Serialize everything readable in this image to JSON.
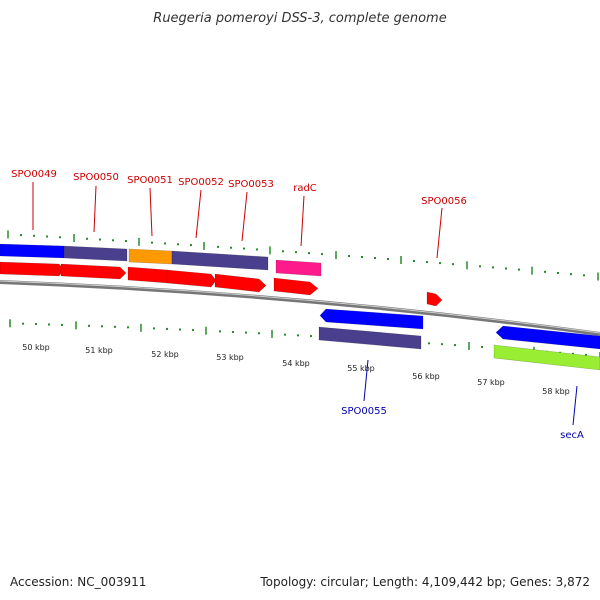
{
  "title": "Ruegeria pomeroyi DSS-3, complete genome",
  "footer": {
    "accession": "Accession: NC_003911",
    "summary": "Topology: circular; Length: 4,109,442 bp; Genes: 3,872"
  },
  "scale_labels": [
    "50 kbp",
    "51 kbp",
    "52 kbp",
    "53 kbp",
    "54 kbp",
    "55 kbp",
    "56 kbp",
    "57 kbp",
    "58 kbp"
  ],
  "gene_labels_top": [
    "SPO0049",
    "SPO0050",
    "SPO0051",
    "SPO0052",
    "SPO0053",
    "radC",
    "SPO0056"
  ],
  "gene_labels_bottom": [
    "SPO0055",
    "secA"
  ],
  "colors": {
    "forward_gene": "#ff0000",
    "reverse_gene": "#0000ff",
    "slate": "#4a3f8c",
    "orange": "#ff9900",
    "magenta": "#ff1a8c",
    "lime": "#99ee33",
    "backbone": "#888888",
    "tick": "#2a8a2a",
    "label_top": "#cc0000",
    "label_bottom": "#0000aa"
  }
}
